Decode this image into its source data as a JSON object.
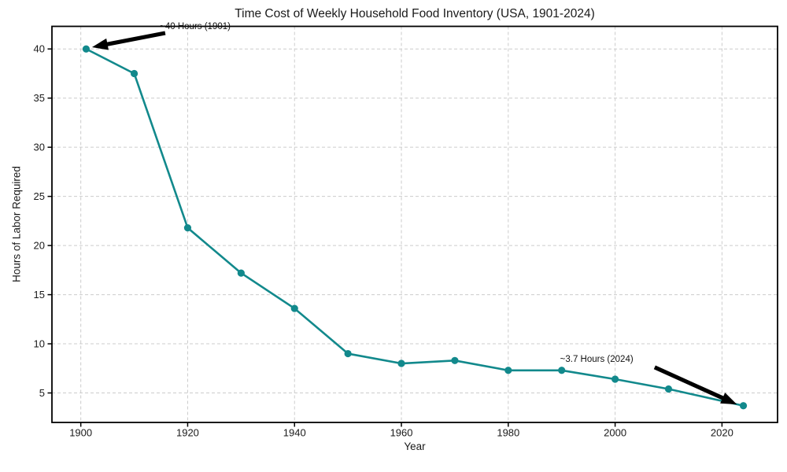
{
  "chart_data": {
    "type": "line",
    "title": "Time Cost of Weekly Household Food Inventory (USA, 1901-2024)",
    "xlabel": "Year",
    "ylabel": "Hours of Labor Required",
    "x": [
      1901,
      1910,
      1920,
      1930,
      1940,
      1950,
      1960,
      1970,
      1980,
      1990,
      2000,
      2010,
      2024
    ],
    "y": [
      40,
      37.5,
      21.8,
      17.2,
      13.6,
      9.0,
      8.0,
      8.3,
      7.3,
      7.3,
      6.4,
      5.4,
      3.7
    ],
    "xlim": [
      1894.6,
      2030.4
    ],
    "ylim": [
      2.0,
      42.3
    ],
    "xticks": [
      1900,
      1920,
      1940,
      1960,
      1980,
      2000,
      2020
    ],
    "yticks": [
      5,
      10,
      15,
      20,
      25,
      30,
      35,
      40
    ],
    "grid": true,
    "grid_style": "dashed",
    "legend": "none",
    "marker": "circle",
    "annotations": [
      {
        "text": "~40 Hours (1901)",
        "point": [
          1901,
          40
        ],
        "text_pos": [
          1914.8,
          42.78
        ],
        "arrow_from": [
          1915.8,
          41.62
        ],
        "arrow_to": [
          1902.1,
          40.18
        ]
      },
      {
        "text": "~3.7 Hours (2024)",
        "point": [
          2024,
          3.7
        ],
        "text_pos": [
          1989.7,
          8.91
        ],
        "arrow_from": [
          2007.4,
          7.61
        ],
        "arrow_to": [
          2022.8,
          3.83
        ]
      }
    ]
  },
  "colors": {
    "line": "#12898C",
    "grid": "#CCCCCC",
    "axis": "#000000",
    "tick_text": "#1A1A1A",
    "arrow": "#000000",
    "background": "#FFFFFF"
  }
}
